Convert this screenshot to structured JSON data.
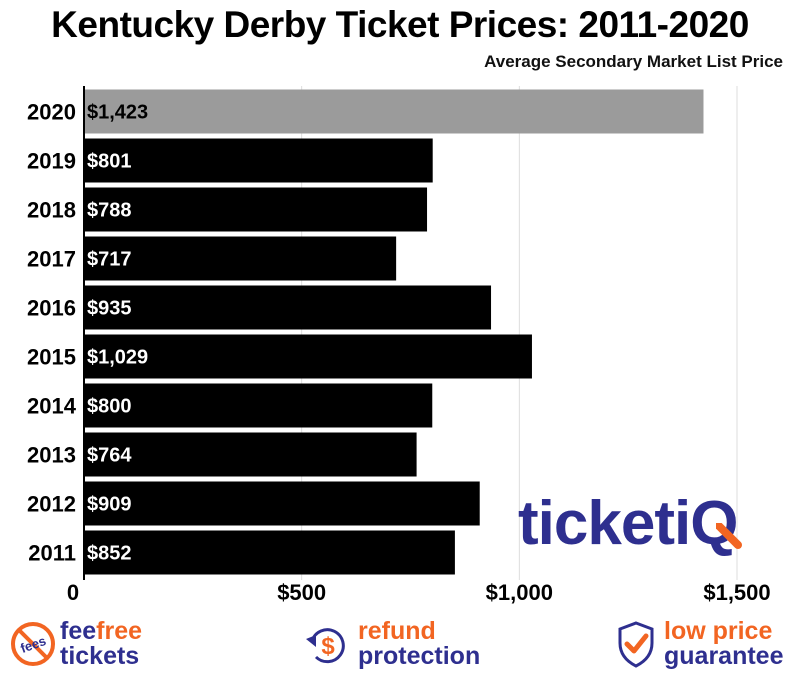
{
  "chart_data": {
    "type": "bar",
    "orientation": "horizontal",
    "title": "Kentucky Derby Ticket Prices: 2011-2020",
    "subtitle": "Average Secondary Market List Price",
    "categories": [
      "2020",
      "2019",
      "2018",
      "2017",
      "2016",
      "2015",
      "2014",
      "2013",
      "2012",
      "2011"
    ],
    "values": [
      1423,
      801,
      788,
      717,
      935,
      1029,
      800,
      764,
      909,
      852
    ],
    "data_labels": [
      "$1,423",
      "$801",
      "$788",
      "$717",
      "$935",
      "$1,029",
      "$800",
      "$764",
      "$909",
      "$852"
    ],
    "bar_colors": [
      "#9b9b9b",
      "#000000",
      "#000000",
      "#000000",
      "#000000",
      "#000000",
      "#000000",
      "#000000",
      "#000000",
      "#000000"
    ],
    "label_colors": [
      "#000000",
      "#ffffff",
      "#ffffff",
      "#ffffff",
      "#ffffff",
      "#ffffff",
      "#ffffff",
      "#ffffff",
      "#ffffff",
      "#ffffff"
    ],
    "xlim": [
      0,
      1500
    ],
    "x_ticks": [
      0,
      500,
      1000,
      1500
    ],
    "x_tick_labels": [
      "0",
      "$500",
      "$1,000",
      "$1,500"
    ],
    "grid": true,
    "xlabel": "",
    "ylabel": ""
  },
  "logo": {
    "text_main": "ticketi",
    "text_accent": "Q"
  },
  "footer": {
    "fees_badge": "fees",
    "item1_line1a": "fee",
    "item1_line1b": "free",
    "item1_line2": "tickets",
    "item2_symbol": "$",
    "item2_line1": "refund",
    "item2_line2": "protection",
    "item3_line1": "low price",
    "item3_line2": "guarantee"
  },
  "colors": {
    "brand_blue": "#2e2f8f",
    "brand_orange": "#f26522",
    "highlight_bar": "#9b9b9b",
    "bar": "#000000"
  }
}
